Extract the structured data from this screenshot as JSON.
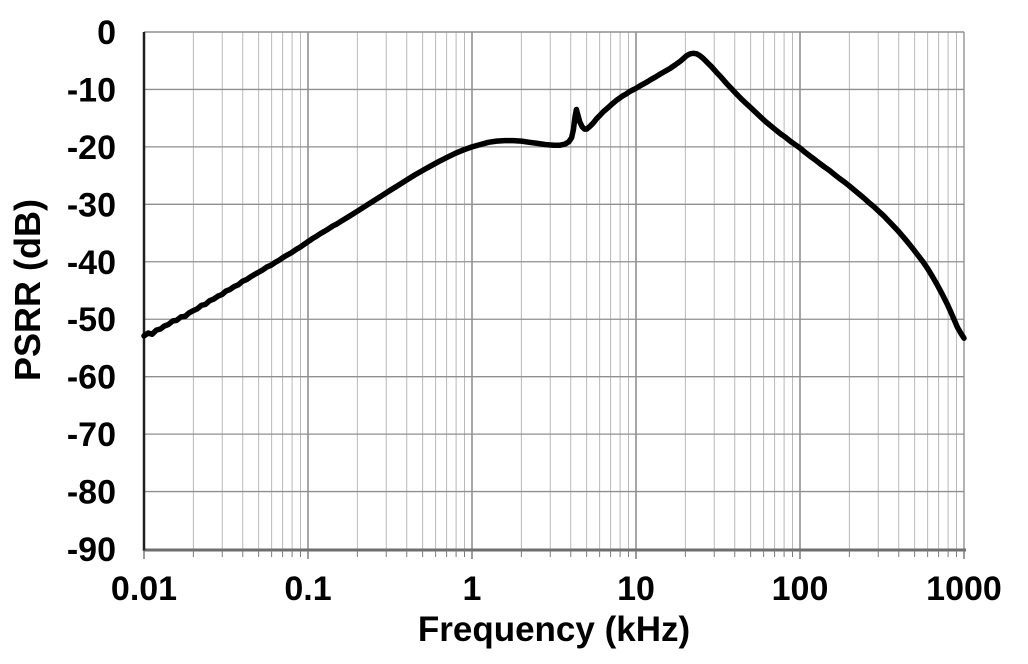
{
  "chart_data": {
    "type": "line",
    "title": "",
    "xlabel": "Frequency (kHz)",
    "ylabel": "PSRR (dB)",
    "x_scale": "log",
    "xlim": [
      0.01,
      1000
    ],
    "ylim": [
      -90,
      0
    ],
    "grid": {
      "minor_x": true,
      "major_x": true,
      "horizontal_every_dB": 10,
      "legend": "none"
    },
    "x_ticks": {
      "values": [
        0.01,
        0.1,
        1,
        10,
        100,
        1000
      ],
      "labels": [
        "0.01",
        "0.1",
        "1",
        "10",
        "100",
        "1000"
      ]
    },
    "y_ticks": {
      "values": [
        0,
        -10,
        -20,
        -30,
        -40,
        -50,
        -60,
        -70,
        -80,
        -90
      ],
      "labels": [
        "0",
        "-10",
        "-20",
        "-30",
        "-40",
        "-50",
        "-60",
        "-70",
        "-80",
        "-90"
      ]
    },
    "style": {
      "background": "#ffffff",
      "line_color": "#000000",
      "line_width": 5.5,
      "grid_minor_color": "#b9b9b9",
      "grid_major_color": "#8a8a8a",
      "grid_h_color": "#8f8f8f",
      "axis_left_color": "#1f1f1f",
      "axis_bottom_color": "#6e6e6e",
      "tick_mark_color": "#7a7a7a",
      "label_color": "#000000"
    },
    "series": [
      {
        "name": "PSRR",
        "points": [
          [
            0.01,
            -52.9
          ],
          [
            0.0106,
            -52.4
          ],
          [
            0.0112,
            -52.6
          ],
          [
            0.0119,
            -51.9
          ],
          [
            0.0126,
            -51.7
          ],
          [
            0.0133,
            -51.2
          ],
          [
            0.0141,
            -50.9
          ],
          [
            0.015,
            -50.3
          ],
          [
            0.0158,
            -50.2
          ],
          [
            0.0168,
            -49.6
          ],
          [
            0.0178,
            -49.5
          ],
          [
            0.0188,
            -48.9
          ],
          [
            0.02,
            -48.5
          ],
          [
            0.0211,
            -48.2
          ],
          [
            0.0224,
            -47.6
          ],
          [
            0.0237,
            -47.4
          ],
          [
            0.0251,
            -46.8
          ],
          [
            0.0266,
            -46.5
          ],
          [
            0.0282,
            -46.0
          ],
          [
            0.0299,
            -45.7
          ],
          [
            0.0316,
            -45.1
          ],
          [
            0.0335,
            -44.8
          ],
          [
            0.0355,
            -44.3
          ],
          [
            0.0376,
            -44.0
          ],
          [
            0.0398,
            -43.4
          ],
          [
            0.0422,
            -43.1
          ],
          [
            0.0447,
            -42.6
          ],
          [
            0.0473,
            -42.2
          ],
          [
            0.0501,
            -41.8
          ],
          [
            0.0531,
            -41.4
          ],
          [
            0.0562,
            -40.9
          ],
          [
            0.0596,
            -40.6
          ],
          [
            0.0631,
            -40.1
          ],
          [
            0.0668,
            -39.7
          ],
          [
            0.0708,
            -39.2
          ],
          [
            0.075,
            -38.8
          ],
          [
            0.0794,
            -38.4
          ],
          [
            0.0841,
            -37.9
          ],
          [
            0.0891,
            -37.5
          ],
          [
            0.0944,
            -37.0
          ],
          [
            0.1,
            -36.5
          ],
          [
            0.106,
            -36.0
          ],
          [
            0.112,
            -35.6
          ],
          [
            0.119,
            -35.1
          ],
          [
            0.126,
            -34.7
          ],
          [
            0.133,
            -34.3
          ],
          [
            0.141,
            -33.8
          ],
          [
            0.15,
            -33.4
          ],
          [
            0.158,
            -33.0
          ],
          [
            0.178,
            -32.1
          ],
          [
            0.2,
            -31.2
          ],
          [
            0.224,
            -30.3
          ],
          [
            0.251,
            -29.4
          ],
          [
            0.282,
            -28.5
          ],
          [
            0.316,
            -27.6
          ],
          [
            0.355,
            -26.7
          ],
          [
            0.398,
            -25.8
          ],
          [
            0.447,
            -24.9
          ],
          [
            0.501,
            -24.1
          ],
          [
            0.562,
            -23.3
          ],
          [
            0.631,
            -22.5
          ],
          [
            0.708,
            -21.8
          ],
          [
            0.794,
            -21.1
          ],
          [
            0.891,
            -20.5
          ],
          [
            1.0,
            -20.0
          ],
          [
            1.12,
            -19.6
          ],
          [
            1.26,
            -19.2
          ],
          [
            1.41,
            -19.0
          ],
          [
            1.58,
            -18.9
          ],
          [
            1.78,
            -18.9
          ],
          [
            2.0,
            -19.0
          ],
          [
            2.24,
            -19.2
          ],
          [
            2.51,
            -19.4
          ],
          [
            2.82,
            -19.6
          ],
          [
            3.16,
            -19.7
          ],
          [
            3.45,
            -19.7
          ],
          [
            3.7,
            -19.5
          ],
          [
            3.9,
            -19.1
          ],
          [
            4.05,
            -18.4
          ],
          [
            4.15,
            -17.0
          ],
          [
            4.25,
            -14.7
          ],
          [
            4.33,
            -13.5
          ],
          [
            4.42,
            -14.4
          ],
          [
            4.55,
            -15.7
          ],
          [
            4.7,
            -16.5
          ],
          [
            4.85,
            -16.9
          ],
          [
            5.01,
            -16.9
          ],
          [
            5.25,
            -16.4
          ],
          [
            5.5,
            -15.8
          ],
          [
            5.75,
            -15.1
          ],
          [
            6.03,
            -14.5
          ],
          [
            6.31,
            -13.9
          ],
          [
            6.61,
            -13.4
          ],
          [
            6.92,
            -12.9
          ],
          [
            7.24,
            -12.4
          ],
          [
            7.59,
            -11.9
          ],
          [
            7.94,
            -11.5
          ],
          [
            8.32,
            -11.1
          ],
          [
            8.71,
            -10.8
          ],
          [
            9.12,
            -10.4
          ],
          [
            9.55,
            -10.1
          ],
          [
            10.0,
            -9.8
          ],
          [
            10.7,
            -9.3
          ],
          [
            11.5,
            -8.8
          ],
          [
            12.3,
            -8.3
          ],
          [
            13.2,
            -7.8
          ],
          [
            14.1,
            -7.3
          ],
          [
            15.1,
            -6.8
          ],
          [
            16.2,
            -6.3
          ],
          [
            17.4,
            -5.7
          ],
          [
            18.6,
            -5.1
          ],
          [
            19.5,
            -4.6
          ],
          [
            20.4,
            -4.1
          ],
          [
            21.4,
            -3.8
          ],
          [
            22.4,
            -3.7
          ],
          [
            23.4,
            -3.8
          ],
          [
            24.5,
            -4.1
          ],
          [
            25.7,
            -4.6
          ],
          [
            27.0,
            -5.2
          ],
          [
            28.8,
            -6.0
          ],
          [
            30.9,
            -7.0
          ],
          [
            33.1,
            -7.9
          ],
          [
            35.5,
            -8.9
          ],
          [
            38.0,
            -9.8
          ],
          [
            40.7,
            -10.7
          ],
          [
            43.7,
            -11.6
          ],
          [
            46.8,
            -12.4
          ],
          [
            50.1,
            -13.2
          ],
          [
            53.7,
            -14.0
          ],
          [
            57.5,
            -14.8
          ],
          [
            61.7,
            -15.6
          ],
          [
            66.1,
            -16.3
          ],
          [
            70.8,
            -17.0
          ],
          [
            75.9,
            -17.7
          ],
          [
            81.3,
            -18.3
          ],
          [
            87.1,
            -19.0
          ],
          [
            93.3,
            -19.6
          ],
          [
            100,
            -20.2
          ],
          [
            107,
            -20.9
          ],
          [
            115,
            -21.6
          ],
          [
            123,
            -22.2
          ],
          [
            132,
            -22.9
          ],
          [
            141,
            -23.5
          ],
          [
            151,
            -24.1
          ],
          [
            162,
            -24.8
          ],
          [
            174,
            -25.5
          ],
          [
            186,
            -26.1
          ],
          [
            200,
            -26.8
          ],
          [
            214,
            -27.5
          ],
          [
            229,
            -28.2
          ],
          [
            245,
            -28.9
          ],
          [
            263,
            -29.7
          ],
          [
            282,
            -30.4
          ],
          [
            302,
            -31.2
          ],
          [
            324,
            -32.0
          ],
          [
            347,
            -32.9
          ],
          [
            372,
            -33.8
          ],
          [
            398,
            -34.7
          ],
          [
            427,
            -35.7
          ],
          [
            457,
            -36.7
          ],
          [
            490,
            -37.8
          ],
          [
            525,
            -38.9
          ],
          [
            562,
            -40.0
          ],
          [
            603,
            -41.3
          ],
          [
            646,
            -42.7
          ],
          [
            692,
            -44.2
          ],
          [
            741,
            -45.8
          ],
          [
            794,
            -47.5
          ],
          [
            832,
            -48.8
          ],
          [
            871,
            -50.1
          ],
          [
            912,
            -51.4
          ],
          [
            955,
            -52.4
          ],
          [
            1000,
            -53.3
          ]
        ]
      }
    ]
  }
}
